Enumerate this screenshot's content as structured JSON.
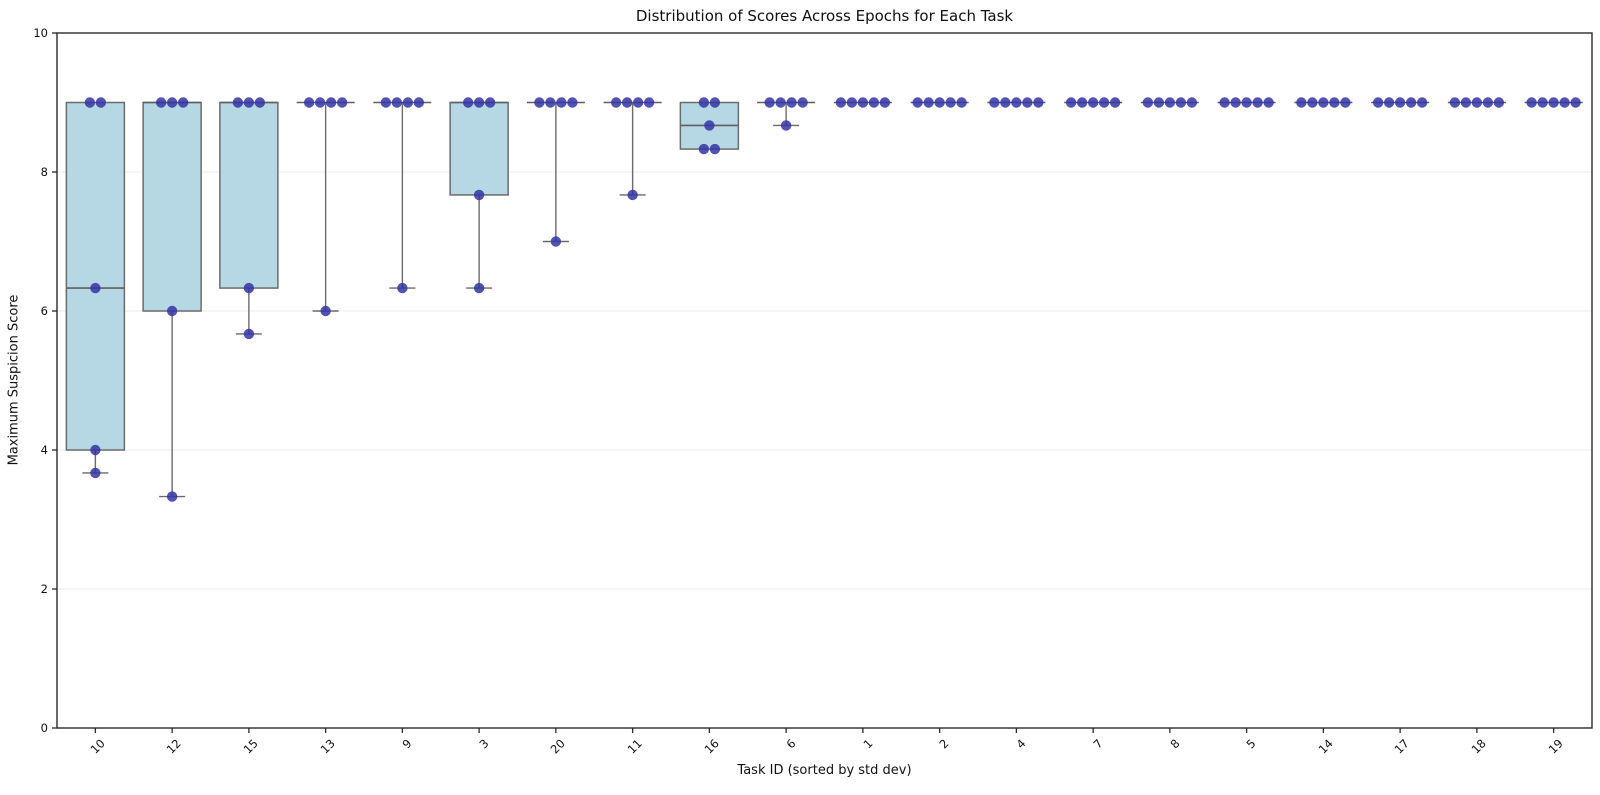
{
  "chart_data": {
    "type": "box",
    "title": "Distribution of Scores Across Epochs for Each Task",
    "xlabel": "Task ID (sorted by std dev)",
    "ylabel": "Maximum Suspicion Score",
    "ylim": [
      0,
      10
    ],
    "yticks": [
      0,
      2,
      4,
      6,
      8,
      10
    ],
    "grid": "horizontal-light",
    "legend": "none",
    "points_per_task": 5,
    "colors": {
      "box_fill": "#b6d7e4",
      "box_edge": "#6b6b6b",
      "whisker": "#6b6b6b",
      "median": "#5f5f5f",
      "point": "#3434a4",
      "gridline": "#efefef",
      "spine": "#2a2a2a",
      "background": "#ffffff"
    },
    "categories": [
      "10",
      "12",
      "15",
      "13",
      "9",
      "3",
      "20",
      "11",
      "16",
      "6",
      "1",
      "2",
      "4",
      "7",
      "8",
      "5",
      "14",
      "17",
      "18",
      "19"
    ],
    "boxes": [
      {
        "task": "10",
        "points": [
          9,
          9,
          6.33,
          4,
          3.67
        ],
        "q1": 4,
        "median": 6.33,
        "q3": 9,
        "whisker_low": 3.67,
        "whisker_high": 9
      },
      {
        "task": "12",
        "points": [
          9,
          9,
          9,
          6,
          3.33
        ],
        "q1": 6,
        "median": 9,
        "q3": 9,
        "whisker_low": 3.33,
        "whisker_high": 9
      },
      {
        "task": "15",
        "points": [
          9,
          9,
          9,
          6.33,
          5.67
        ],
        "q1": 6.33,
        "median": 9,
        "q3": 9,
        "whisker_low": 5.67,
        "whisker_high": 9
      },
      {
        "task": "13",
        "points": [
          9,
          9,
          9,
          9,
          6
        ],
        "q1": 9,
        "median": 9,
        "q3": 9,
        "whisker_low": 6,
        "whisker_high": 9
      },
      {
        "task": "9",
        "points": [
          9,
          9,
          9,
          9,
          6.33
        ],
        "q1": 9,
        "median": 9,
        "q3": 9,
        "whisker_low": 6.33,
        "whisker_high": 9
      },
      {
        "task": "3",
        "points": [
          9,
          9,
          9,
          7.67,
          6.33
        ],
        "q1": 7.67,
        "median": 9,
        "q3": 9,
        "whisker_low": 6.33,
        "whisker_high": 9
      },
      {
        "task": "20",
        "points": [
          9,
          9,
          9,
          9,
          7
        ],
        "q1": 9,
        "median": 9,
        "q3": 9,
        "whisker_low": 7,
        "whisker_high": 9
      },
      {
        "task": "11",
        "points": [
          9,
          9,
          9,
          9,
          7.67
        ],
        "q1": 9,
        "median": 9,
        "q3": 9,
        "whisker_low": 7.67,
        "whisker_high": 9
      },
      {
        "task": "16",
        "points": [
          9,
          9,
          8.67,
          8.33,
          8.33
        ],
        "q1": 8.33,
        "median": 8.67,
        "q3": 9,
        "whisker_low": 8.33,
        "whisker_high": 9
      },
      {
        "task": "6",
        "points": [
          9,
          9,
          9,
          9,
          8.67
        ],
        "q1": 9,
        "median": 9,
        "q3": 9,
        "whisker_low": 8.67,
        "whisker_high": 9
      },
      {
        "task": "1",
        "points": [
          9,
          9,
          9,
          9,
          9
        ],
        "q1": 9,
        "median": 9,
        "q3": 9,
        "whisker_low": 9,
        "whisker_high": 9
      },
      {
        "task": "2",
        "points": [
          9,
          9,
          9,
          9,
          9
        ],
        "q1": 9,
        "median": 9,
        "q3": 9,
        "whisker_low": 9,
        "whisker_high": 9
      },
      {
        "task": "4",
        "points": [
          9,
          9,
          9,
          9,
          9
        ],
        "q1": 9,
        "median": 9,
        "q3": 9,
        "whisker_low": 9,
        "whisker_high": 9
      },
      {
        "task": "7",
        "points": [
          9,
          9,
          9,
          9,
          9
        ],
        "q1": 9,
        "median": 9,
        "q3": 9,
        "whisker_low": 9,
        "whisker_high": 9
      },
      {
        "task": "8",
        "points": [
          9,
          9,
          9,
          9,
          9
        ],
        "q1": 9,
        "median": 9,
        "q3": 9,
        "whisker_low": 9,
        "whisker_high": 9
      },
      {
        "task": "5",
        "points": [
          9,
          9,
          9,
          9,
          9
        ],
        "q1": 9,
        "median": 9,
        "q3": 9,
        "whisker_low": 9,
        "whisker_high": 9
      },
      {
        "task": "14",
        "points": [
          9,
          9,
          9,
          9,
          9
        ],
        "q1": 9,
        "median": 9,
        "q3": 9,
        "whisker_low": 9,
        "whisker_high": 9
      },
      {
        "task": "17",
        "points": [
          9,
          9,
          9,
          9,
          9
        ],
        "q1": 9,
        "median": 9,
        "q3": 9,
        "whisker_low": 9,
        "whisker_high": 9
      },
      {
        "task": "18",
        "points": [
          9,
          9,
          9,
          9,
          9
        ],
        "q1": 9,
        "median": 9,
        "q3": 9,
        "whisker_low": 9,
        "whisker_high": 9
      },
      {
        "task": "19",
        "points": [
          9,
          9,
          9,
          9,
          9
        ],
        "q1": 9,
        "median": 9,
        "q3": 9,
        "whisker_low": 9,
        "whisker_high": 9
      }
    ]
  }
}
